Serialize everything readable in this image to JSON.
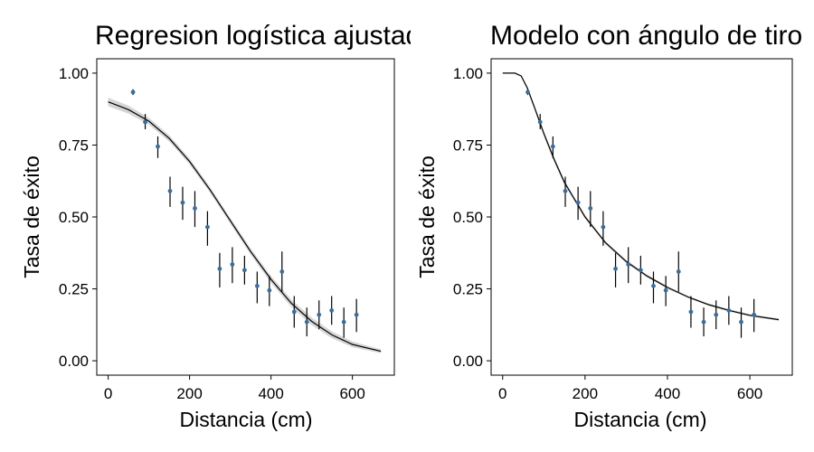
{
  "chart_data": [
    {
      "type": "scatter",
      "title": "Regresion logística ajustada",
      "xlabel": "Distancia (cm)",
      "ylabel": "Tasa de éxito",
      "xlim": [
        -28,
        703
      ],
      "ylim": [
        -0.05,
        1.05
      ],
      "x_ticks": [
        0,
        200,
        400,
        600
      ],
      "x_tick_labels": [
        "0",
        "200",
        "400",
        "600"
      ],
      "y_ticks": [
        0,
        0.25,
        0.5,
        0.75,
        1.0
      ],
      "y_tick_labels": [
        "0.00",
        "0.25",
        "0.50",
        "0.75",
        "1.00"
      ],
      "grid": false,
      "point_color": "#3a6e9e",
      "points": [
        {
          "x": 61,
          "y": 0.934,
          "lo": 0.924,
          "hi": 0.944
        },
        {
          "x": 91,
          "y": 0.83,
          "lo": 0.805,
          "hi": 0.858
        },
        {
          "x": 122,
          "y": 0.745,
          "lo": 0.705,
          "hi": 0.78
        },
        {
          "x": 152,
          "y": 0.59,
          "lo": 0.535,
          "hi": 0.64
        },
        {
          "x": 183,
          "y": 0.55,
          "lo": 0.49,
          "hi": 0.605
        },
        {
          "x": 213,
          "y": 0.53,
          "lo": 0.465,
          "hi": 0.59
        },
        {
          "x": 244,
          "y": 0.465,
          "lo": 0.4,
          "hi": 0.52
        },
        {
          "x": 274,
          "y": 0.32,
          "lo": 0.255,
          "hi": 0.375
        },
        {
          "x": 305,
          "y": 0.335,
          "lo": 0.27,
          "hi": 0.395
        },
        {
          "x": 335,
          "y": 0.315,
          "lo": 0.265,
          "hi": 0.365
        },
        {
          "x": 366,
          "y": 0.26,
          "lo": 0.2,
          "hi": 0.31
        },
        {
          "x": 396,
          "y": 0.245,
          "lo": 0.19,
          "hi": 0.295
        },
        {
          "x": 427,
          "y": 0.31,
          "lo": 0.24,
          "hi": 0.38
        },
        {
          "x": 457,
          "y": 0.17,
          "lo": 0.115,
          "hi": 0.225
        },
        {
          "x": 488,
          "y": 0.135,
          "lo": 0.085,
          "hi": 0.185
        },
        {
          "x": 518,
          "y": 0.16,
          "lo": 0.11,
          "hi": 0.21
        },
        {
          "x": 549,
          "y": 0.175,
          "lo": 0.125,
          "hi": 0.225
        },
        {
          "x": 579,
          "y": 0.135,
          "lo": 0.08,
          "hi": 0.185
        },
        {
          "x": 610,
          "y": 0.16,
          "lo": 0.1,
          "hi": 0.215
        }
      ],
      "fit_curve": [
        {
          "x": 0,
          "y": 0.9,
          "lo": 0.885,
          "hi": 0.915
        },
        {
          "x": 50,
          "y": 0.873,
          "lo": 0.859,
          "hi": 0.887
        },
        {
          "x": 100,
          "y": 0.833,
          "lo": 0.821,
          "hi": 0.845
        },
        {
          "x": 150,
          "y": 0.773,
          "lo": 0.762,
          "hi": 0.784
        },
        {
          "x": 200,
          "y": 0.693,
          "lo": 0.683,
          "hi": 0.703
        },
        {
          "x": 250,
          "y": 0.595,
          "lo": 0.585,
          "hi": 0.605
        },
        {
          "x": 300,
          "y": 0.487,
          "lo": 0.477,
          "hi": 0.497
        },
        {
          "x": 350,
          "y": 0.38,
          "lo": 0.369,
          "hi": 0.391
        },
        {
          "x": 400,
          "y": 0.283,
          "lo": 0.271,
          "hi": 0.295
        },
        {
          "x": 450,
          "y": 0.2,
          "lo": 0.187,
          "hi": 0.213
        },
        {
          "x": 500,
          "y": 0.137,
          "lo": 0.124,
          "hi": 0.15
        },
        {
          "x": 550,
          "y": 0.09,
          "lo": 0.078,
          "hi": 0.102
        },
        {
          "x": 600,
          "y": 0.057,
          "lo": 0.047,
          "hi": 0.067
        },
        {
          "x": 670,
          "y": 0.033,
          "lo": 0.026,
          "hi": 0.04
        }
      ]
    },
    {
      "type": "scatter",
      "title": "Modelo con ángulo de tiro",
      "xlabel": "Distancia (cm)",
      "ylabel": "Tasa de éxito",
      "xlim": [
        -28,
        703
      ],
      "ylim": [
        -0.05,
        1.05
      ],
      "x_ticks": [
        0,
        200,
        400,
        600
      ],
      "x_tick_labels": [
        "0",
        "200",
        "400",
        "600"
      ],
      "y_ticks": [
        0,
        0.25,
        0.5,
        0.75,
        1.0
      ],
      "y_tick_labels": [
        "0.00",
        "0.25",
        "0.50",
        "0.75",
        "1.00"
      ],
      "grid": false,
      "point_color": "#3a6e9e",
      "points": [
        {
          "x": 61,
          "y": 0.934,
          "lo": 0.924,
          "hi": 0.944
        },
        {
          "x": 91,
          "y": 0.83,
          "lo": 0.805,
          "hi": 0.858
        },
        {
          "x": 122,
          "y": 0.745,
          "lo": 0.705,
          "hi": 0.78
        },
        {
          "x": 152,
          "y": 0.59,
          "lo": 0.535,
          "hi": 0.64
        },
        {
          "x": 183,
          "y": 0.55,
          "lo": 0.49,
          "hi": 0.605
        },
        {
          "x": 213,
          "y": 0.53,
          "lo": 0.465,
          "hi": 0.59
        },
        {
          "x": 244,
          "y": 0.465,
          "lo": 0.4,
          "hi": 0.52
        },
        {
          "x": 274,
          "y": 0.32,
          "lo": 0.255,
          "hi": 0.375
        },
        {
          "x": 305,
          "y": 0.335,
          "lo": 0.27,
          "hi": 0.395
        },
        {
          "x": 335,
          "y": 0.315,
          "lo": 0.265,
          "hi": 0.365
        },
        {
          "x": 366,
          "y": 0.26,
          "lo": 0.2,
          "hi": 0.31
        },
        {
          "x": 396,
          "y": 0.245,
          "lo": 0.19,
          "hi": 0.295
        },
        {
          "x": 427,
          "y": 0.31,
          "lo": 0.24,
          "hi": 0.38
        },
        {
          "x": 457,
          "y": 0.17,
          "lo": 0.115,
          "hi": 0.225
        },
        {
          "x": 488,
          "y": 0.135,
          "lo": 0.085,
          "hi": 0.185
        },
        {
          "x": 518,
          "y": 0.16,
          "lo": 0.11,
          "hi": 0.21
        },
        {
          "x": 549,
          "y": 0.175,
          "lo": 0.125,
          "hi": 0.225
        },
        {
          "x": 579,
          "y": 0.135,
          "lo": 0.08,
          "hi": 0.185
        },
        {
          "x": 610,
          "y": 0.16,
          "lo": 0.1,
          "hi": 0.215
        }
      ],
      "fit_curve": [
        {
          "x": 0,
          "y": 1.0,
          "lo": 1.0,
          "hi": 1.0
        },
        {
          "x": 30,
          "y": 1.0,
          "lo": 1.0,
          "hi": 1.0
        },
        {
          "x": 45,
          "y": 0.99,
          "lo": 0.988,
          "hi": 0.992
        },
        {
          "x": 60,
          "y": 0.948,
          "lo": 0.942,
          "hi": 0.954
        },
        {
          "x": 80,
          "y": 0.87,
          "lo": 0.862,
          "hi": 0.878
        },
        {
          "x": 100,
          "y": 0.79,
          "lo": 0.781,
          "hi": 0.799
        },
        {
          "x": 125,
          "y": 0.7,
          "lo": 0.691,
          "hi": 0.709
        },
        {
          "x": 150,
          "y": 0.62,
          "lo": 0.612,
          "hi": 0.628
        },
        {
          "x": 200,
          "y": 0.5,
          "lo": 0.493,
          "hi": 0.507
        },
        {
          "x": 250,
          "y": 0.41,
          "lo": 0.404,
          "hi": 0.416
        },
        {
          "x": 300,
          "y": 0.345,
          "lo": 0.339,
          "hi": 0.351
        },
        {
          "x": 350,
          "y": 0.295,
          "lo": 0.29,
          "hi": 0.3
        },
        {
          "x": 400,
          "y": 0.255,
          "lo": 0.25,
          "hi": 0.26
        },
        {
          "x": 450,
          "y": 0.222,
          "lo": 0.218,
          "hi": 0.226
        },
        {
          "x": 500,
          "y": 0.195,
          "lo": 0.191,
          "hi": 0.199
        },
        {
          "x": 550,
          "y": 0.175,
          "lo": 0.171,
          "hi": 0.179
        },
        {
          "x": 600,
          "y": 0.158,
          "lo": 0.154,
          "hi": 0.162
        },
        {
          "x": 670,
          "y": 0.143,
          "lo": 0.139,
          "hi": 0.147
        }
      ]
    }
  ]
}
